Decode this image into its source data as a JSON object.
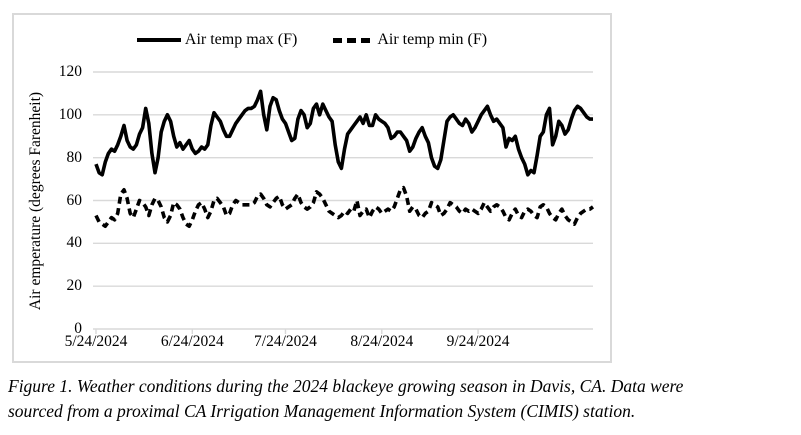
{
  "figure": {
    "caption_line1": "Figure 1. Weather conditions during the 2024 blackeye growing season in Davis, CA. Data were",
    "caption_line2": "sourced from a proximal CA Irrigation Management Information System (CIMIS) station."
  },
  "chart_data": {
    "type": "line",
    "title": "",
    "xlabel": "",
    "ylabel": "Air emperature (degrees Farenheit)",
    "ylim": [
      0,
      120
    ],
    "yticks": [
      0,
      20,
      40,
      60,
      80,
      100,
      120
    ],
    "xtick_labels": [
      "5/24/2024",
      "6/24/2024",
      "7/24/2024",
      "8/24/2024",
      "9/24/2024"
    ],
    "xtick_day_offsets": [
      0,
      31,
      61,
      92,
      123
    ],
    "x_start_date": "5/24/2024",
    "x_days_span": 160,
    "grid": "horizontal-only",
    "legend_position": "top-center",
    "colors": {
      "grid": "#d9d9d9",
      "axis": "#d9d9d9",
      "border": "#d9d9d9",
      "series": "#000000"
    },
    "series": [
      {
        "name": "Air temp max (F)",
        "style": "solid",
        "color": "#000000",
        "values": [
          77,
          73,
          72,
          78,
          82,
          84,
          83,
          86,
          90,
          95,
          88,
          85,
          84,
          86,
          91,
          94,
          103,
          96,
          82,
          73,
          80,
          92,
          97,
          100,
          97,
          90,
          85,
          87,
          84,
          86,
          88,
          84,
          82,
          83,
          85,
          84,
          86,
          95,
          101,
          99,
          97,
          93,
          90,
          90,
          93,
          96,
          98,
          100,
          102,
          103,
          103,
          104,
          107,
          111,
          100,
          93,
          104,
          108,
          107,
          102,
          98,
          96,
          92,
          88,
          89,
          98,
          102,
          100,
          94,
          96,
          103,
          105,
          100,
          105,
          102,
          99,
          97,
          86,
          78,
          75,
          84,
          91,
          93,
          95,
          97,
          99,
          96,
          100,
          95,
          95,
          100,
          98,
          97,
          96,
          94,
          89,
          90,
          92,
          92,
          90,
          88,
          83,
          85,
          89,
          92,
          94,
          90,
          87,
          80,
          76,
          75,
          79,
          88,
          97,
          99,
          100,
          98,
          96,
          95,
          98,
          96,
          92,
          94,
          97,
          100,
          102,
          104,
          100,
          97,
          98,
          96,
          94,
          85,
          89,
          88,
          90,
          84,
          80,
          77,
          72,
          74,
          73,
          81,
          90,
          92,
          100,
          103,
          86,
          90,
          97,
          95,
          91,
          93,
          98,
          102,
          104,
          103,
          101,
          99,
          98,
          98
        ]
      },
      {
        "name": "Air temp min (F)",
        "style": "dashed",
        "color": "#000000",
        "values": [
          53,
          50,
          49,
          48,
          50,
          52,
          51,
          54,
          63,
          65,
          61,
          54,
          52,
          56,
          60,
          59,
          57,
          53,
          58,
          61,
          60,
          57,
          52,
          50,
          53,
          59,
          58,
          56,
          52,
          49,
          48,
          51,
          55,
          58,
          59,
          56,
          52,
          55,
          60,
          61,
          59,
          57,
          53,
          54,
          58,
          60,
          59,
          58,
          58,
          58,
          58,
          59,
          62,
          63,
          61,
          58,
          57,
          59,
          61,
          62,
          58,
          56,
          57,
          58,
          61,
          63,
          59,
          57,
          56,
          57,
          59,
          64,
          63,
          61,
          58,
          55,
          54,
          53,
          52,
          53,
          55,
          54,
          56,
          55,
          60,
          53,
          55,
          56,
          52,
          55,
          57,
          56,
          54,
          55,
          56,
          55,
          57,
          61,
          65,
          66,
          62,
          55,
          57,
          56,
          53,
          52,
          54,
          55,
          59,
          58,
          57,
          53,
          54,
          56,
          59,
          58,
          57,
          55,
          54,
          56,
          55,
          56,
          55,
          54,
          56,
          59,
          57,
          55,
          57,
          58,
          57,
          55,
          52,
          51,
          54,
          56,
          53,
          52,
          55,
          56,
          55,
          53,
          52,
          57,
          58,
          57,
          54,
          52,
          51,
          54,
          56,
          53,
          51,
          50,
          49,
          52,
          54,
          55,
          56,
          56,
          57
        ]
      }
    ]
  }
}
